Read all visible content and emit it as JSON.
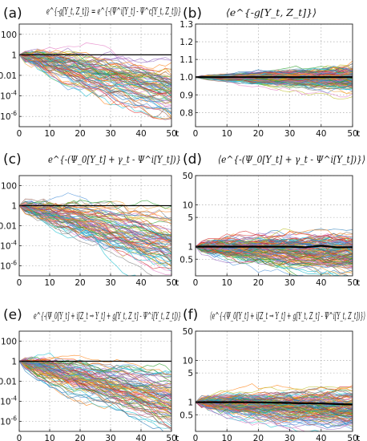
{
  "chart_data": [
    {
      "panel": "(a)",
      "title": "e^{-g[Y_t, Z_t]} = e^{-(Ψ^i[Y_t] - Ψ^c[Y_t, Z_t])}",
      "type": "line",
      "xlabel": "t",
      "xlim": [
        0,
        50
      ],
      "xticks": [
        "0",
        "10",
        "20",
        "30",
        "40",
        "50"
      ],
      "yscale": "log",
      "ylim": [
        1e-07,
        1000
      ],
      "yticks": [
        "100",
        "1",
        "0.01",
        "10^-4",
        "10^-6"
      ],
      "ytick_values": [
        100,
        1,
        0.01,
        0.0001,
        1e-06
      ],
      "grid": true,
      "series_count": 80,
      "mean_series": {
        "color": "#000000",
        "x": [
          0,
          10,
          20,
          30,
          40,
          50
        ],
        "y": [
          1,
          1,
          1,
          1,
          1,
          1
        ]
      }
    },
    {
      "panel": "(b)",
      "title": "⟨e^{-g[Y_t, Z_t]}⟩",
      "type": "line",
      "xlabel": "t",
      "xlim": [
        0,
        50
      ],
      "xticks": [
        "0",
        "10",
        "20",
        "30",
        "40",
        "50"
      ],
      "yscale": "linear",
      "ylim": [
        0.72,
        1.3
      ],
      "yticks": [
        "1.3",
        "1.2",
        "1.1",
        "1.0",
        "0.9",
        "0.8"
      ],
      "ytick_values": [
        1.3,
        1.2,
        1.1,
        1.0,
        0.9,
        0.8
      ],
      "grid": true,
      "series_count": 140,
      "mean_series": {
        "color": "#000000",
        "x": [
          0,
          10,
          20,
          30,
          40,
          50
        ],
        "y": [
          1.0,
          1.0,
          1.0,
          1.0,
          1.0,
          1.0
        ]
      }
    },
    {
      "panel": "(c)",
      "title": "e^{-(Ψ_0[Y_t] + γ_t - Ψ^i[Y_t])}",
      "type": "line",
      "xlabel": "t",
      "xlim": [
        0,
        50
      ],
      "xticks": [
        "0",
        "10",
        "20",
        "30",
        "40",
        "50"
      ],
      "yscale": "log",
      "ylim": [
        1e-07,
        1000
      ],
      "yticks": [
        "100",
        "1",
        "0.01",
        "10^-4",
        "10^-6"
      ],
      "ytick_values": [
        100,
        1,
        0.01,
        0.0001,
        1e-06
      ],
      "grid": true,
      "series_count": 80,
      "mean_series": {
        "color": "#000000",
        "x": [
          0,
          10,
          20,
          30,
          40,
          50
        ],
        "y": [
          1,
          1,
          1,
          1,
          1,
          1
        ]
      }
    },
    {
      "panel": "(d)",
      "title": "⟨e^{-(Ψ_0[Y_t] + γ_t - Ψ^i[Y_t])}⟩",
      "type": "line",
      "xlabel": "t",
      "xlim": [
        0,
        50
      ],
      "xticks": [
        "0",
        "10",
        "20",
        "30",
        "40",
        "50"
      ],
      "yscale": "log",
      "ylim": [
        0.2,
        50
      ],
      "yticks": [
        "50",
        "10",
        "5",
        "1",
        "0.5"
      ],
      "ytick_values": [
        50,
        10,
        5,
        1,
        0.5
      ],
      "grid": true,
      "series_count": 140,
      "mean_series": {
        "color": "#000000",
        "x": [
          0,
          10,
          20,
          30,
          35,
          40,
          45,
          50
        ],
        "y": [
          1,
          1,
          1,
          1,
          0.97,
          1.05,
          0.96,
          0.97
        ]
      }
    },
    {
      "panel": "(e)",
      "title": "e^{-(Ψ_0[Y_t] + i[Z_t → Y_t] + g[Y_t, Z_t] - Ψ^i[Y_t, Z_t])}",
      "type": "line",
      "xlabel": "t",
      "xlim": [
        0,
        50
      ],
      "xticks": [
        "0",
        "10",
        "20",
        "30",
        "40",
        "50"
      ],
      "yscale": "log",
      "ylim": [
        1e-07,
        1000
      ],
      "yticks": [
        "100",
        "1",
        "0.01",
        "10^-4",
        "10^-6"
      ],
      "ytick_values": [
        100,
        1,
        0.01,
        0.0001,
        1e-06
      ],
      "grid": true,
      "series_count": 90,
      "mean_series": {
        "color": "#000000",
        "x": [
          0,
          10,
          20,
          30,
          40,
          50
        ],
        "y": [
          1,
          1,
          1,
          1,
          1,
          1
        ]
      }
    },
    {
      "panel": "(f)",
      "title": "⟨e^{-(Ψ_0[Y_t] + i[Z_t → Y_t] + g[Y_t, Z_t] - Ψ^i[Y_t, Z_t])}⟩",
      "type": "line",
      "xlabel": "t",
      "xlim": [
        0,
        50
      ],
      "xticks": [
        "0",
        "10",
        "20",
        "30",
        "40",
        "50"
      ],
      "yscale": "log",
      "ylim": [
        0.2,
        50
      ],
      "yticks": [
        "50",
        "10",
        "5",
        "1",
        "0.5"
      ],
      "ytick_values": [
        50,
        10,
        5,
        1,
        0.5
      ],
      "grid": true,
      "series_count": 140,
      "mean_series": {
        "color": "#000000",
        "x": [
          0,
          10,
          20,
          30,
          35,
          40,
          45,
          50
        ],
        "y": [
          1,
          1,
          0.99,
          0.96,
          0.94,
          0.93,
          0.9,
          0.88
        ]
      }
    }
  ],
  "colors": [
    "#1f77b4",
    "#ff7f0e",
    "#2ca02c",
    "#d62728",
    "#9467bd",
    "#8c564b",
    "#e377c2",
    "#17becf",
    "#bcbd22",
    "#7f7f7f",
    "#4a90d9",
    "#f0a030"
  ]
}
